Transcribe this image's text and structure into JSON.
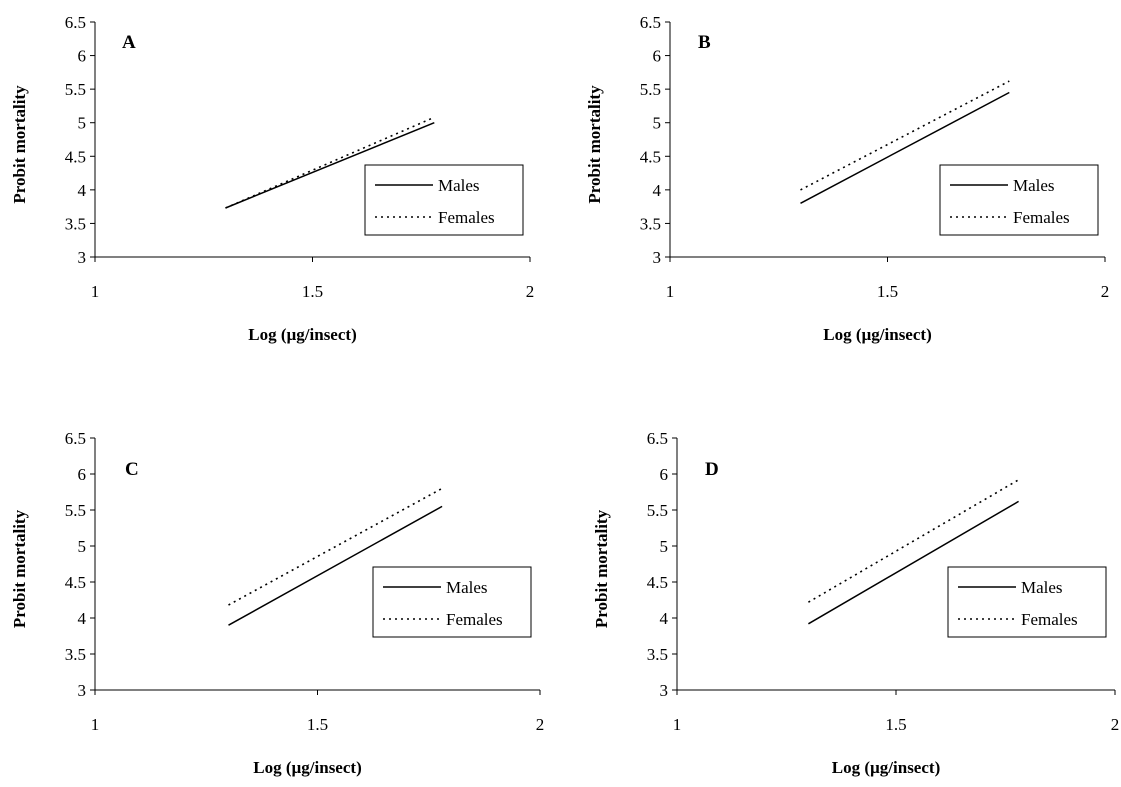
{
  "chart_data": [
    {
      "type": "line",
      "panel": "A",
      "xlabel": "Log (µg/insect)",
      "ylabel": "Probit mortality",
      "xlim": [
        1,
        2
      ],
      "ylim": [
        3,
        6.5
      ],
      "x_ticks": [
        "1",
        "1.5",
        "2"
      ],
      "y_ticks": [
        "3",
        "3.5",
        "4",
        "4.5",
        "5",
        "5.5",
        "6",
        "6.5"
      ],
      "legend": "bottom-right",
      "series": [
        {
          "name": "Males",
          "style": "solid",
          "x": [
            1.3,
            1.78
          ],
          "y": [
            3.73,
            5.0
          ]
        },
        {
          "name": "Females",
          "style": "dotted",
          "x": [
            1.3,
            1.78
          ],
          "y": [
            3.73,
            5.08
          ]
        }
      ]
    },
    {
      "type": "line",
      "panel": "B",
      "xlabel": "Log (µg/insect)",
      "ylabel": "Probit mortality",
      "xlim": [
        1,
        2
      ],
      "ylim": [
        3,
        6.5
      ],
      "x_ticks": [
        "1",
        "1.5",
        "2"
      ],
      "y_ticks": [
        "3",
        "3.5",
        "4",
        "4.5",
        "5",
        "5.5",
        "6",
        "6.5"
      ],
      "legend": "bottom-right",
      "series": [
        {
          "name": "Males",
          "style": "solid",
          "x": [
            1.3,
            1.78
          ],
          "y": [
            3.8,
            5.45
          ]
        },
        {
          "name": "Females",
          "style": "dotted",
          "x": [
            1.3,
            1.78
          ],
          "y": [
            4.0,
            5.62
          ]
        }
      ]
    },
    {
      "type": "line",
      "panel": "C",
      "xlabel": "Log (µg/insect)",
      "ylabel": "Probit mortality",
      "xlim": [
        1,
        2
      ],
      "ylim": [
        3,
        6.5
      ],
      "x_ticks": [
        "1",
        "1.5",
        "2"
      ],
      "y_ticks": [
        "3",
        "3.5",
        "4",
        "4.5",
        "5",
        "5.5",
        "6",
        "6.5"
      ],
      "legend": "bottom-right",
      "series": [
        {
          "name": "Males",
          "style": "solid",
          "x": [
            1.3,
            1.78
          ],
          "y": [
            3.9,
            5.55
          ]
        },
        {
          "name": "Females",
          "style": "dotted",
          "x": [
            1.3,
            1.78
          ],
          "y": [
            4.18,
            5.8
          ]
        }
      ]
    },
    {
      "type": "line",
      "panel": "D",
      "xlabel": "Log (µg/insect)",
      "ylabel": "Probit mortality",
      "xlim": [
        1,
        2
      ],
      "ylim": [
        3,
        6.5
      ],
      "x_ticks": [
        "1",
        "1.5",
        "2"
      ],
      "y_ticks": [
        "3",
        "3.5",
        "4",
        "4.5",
        "5",
        "5.5",
        "6",
        "6.5"
      ],
      "legend": "bottom-right",
      "series": [
        {
          "name": "Males",
          "style": "solid",
          "x": [
            1.3,
            1.78
          ],
          "y": [
            3.92,
            5.62
          ]
        },
        {
          "name": "Females",
          "style": "dotted",
          "x": [
            1.3,
            1.78
          ],
          "y": [
            4.22,
            5.92
          ]
        }
      ]
    }
  ]
}
